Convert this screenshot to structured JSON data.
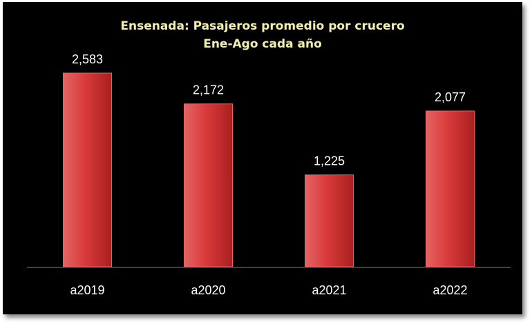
{
  "chart_data": {
    "type": "bar",
    "title": "Ensenada: Pasajeros promedio por crucero",
    "subtitle": "Ene-Ago cada año",
    "categories": [
      "a2019",
      "a2020",
      "a2021",
      "a2022"
    ],
    "values": [
      2583,
      2172,
      1225,
      2077
    ],
    "data_labels": [
      "2,583",
      "2,172",
      "1,225",
      "2,077"
    ],
    "xlabel": "",
    "ylabel": "",
    "ylim": [
      0,
      3000
    ],
    "grid": false,
    "legend": "none",
    "colors": {
      "background": "#000000",
      "bar": "#d93a3a",
      "bar_highlight": "#e56464",
      "bar_shadow": "#a91f1f",
      "title": "#f3efb0",
      "text": "#ffffff",
      "axis": "#8a8a8a"
    }
  }
}
